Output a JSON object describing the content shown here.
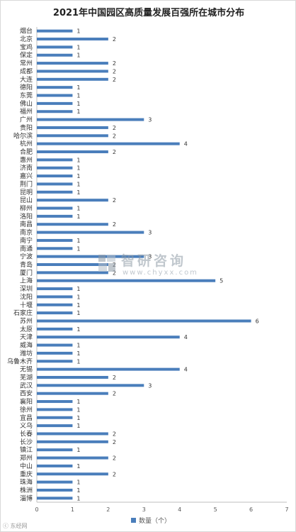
{
  "chart_data": {
    "type": "bar",
    "orientation": "horizontal",
    "title": "2021年中国园区高质量发展百强所在城市分布",
    "categories": [
      "烟台",
      "北京",
      "宝鸡",
      "保定",
      "常州",
      "成都",
      "大连",
      "德阳",
      "东莞",
      "佛山",
      "福州",
      "广州",
      "贵阳",
      "哈尔滨",
      "杭州",
      "合肥",
      "惠州",
      "济南",
      "嘉兴",
      "荆门",
      "昆明",
      "昆山",
      "柳州",
      "洛阳",
      "南昌",
      "南京",
      "南宁",
      "南通",
      "宁波",
      "青岛",
      "厦门",
      "上海",
      "深圳",
      "沈阳",
      "十堰",
      "石家庄",
      "苏州",
      "太原",
      "天津",
      "威海",
      "潍坊",
      "乌鲁木齐",
      "无锡",
      "芜湖",
      "武汉",
      "西安",
      "襄阳",
      "徐州",
      "宜昌",
      "义乌",
      "长春",
      "长沙",
      "镇江",
      "郑州",
      "中山",
      "重庆",
      "珠海",
      "株洲",
      "淄博"
    ],
    "series": [
      {
        "name": "数量（个）",
        "values": [
          1,
          2,
          1,
          1,
          2,
          2,
          2,
          1,
          1,
          1,
          1,
          3,
          2,
          2,
          4,
          2,
          1,
          1,
          1,
          1,
          1,
          2,
          1,
          1,
          2,
          3,
          1,
          1,
          3,
          2,
          2,
          5,
          1,
          1,
          1,
          1,
          6,
          1,
          4,
          1,
          1,
          1,
          4,
          2,
          3,
          2,
          1,
          1,
          1,
          1,
          2,
          2,
          1,
          2,
          1,
          2,
          1,
          1,
          1
        ]
      }
    ],
    "xlim": [
      0,
      7
    ],
    "x_ticks": [
      "0",
      "1",
      "2",
      "3",
      "4",
      "5",
      "6",
      "7"
    ],
    "grid": false,
    "legend_position": "bottom",
    "colors": {
      "bar": "#4a7ebb",
      "axis": "#bfbfbf"
    }
  },
  "watermark": {
    "cn": "智研咨询",
    "url": "www.chyxx.com"
  },
  "footer_mark": "ⓒ 东经网"
}
